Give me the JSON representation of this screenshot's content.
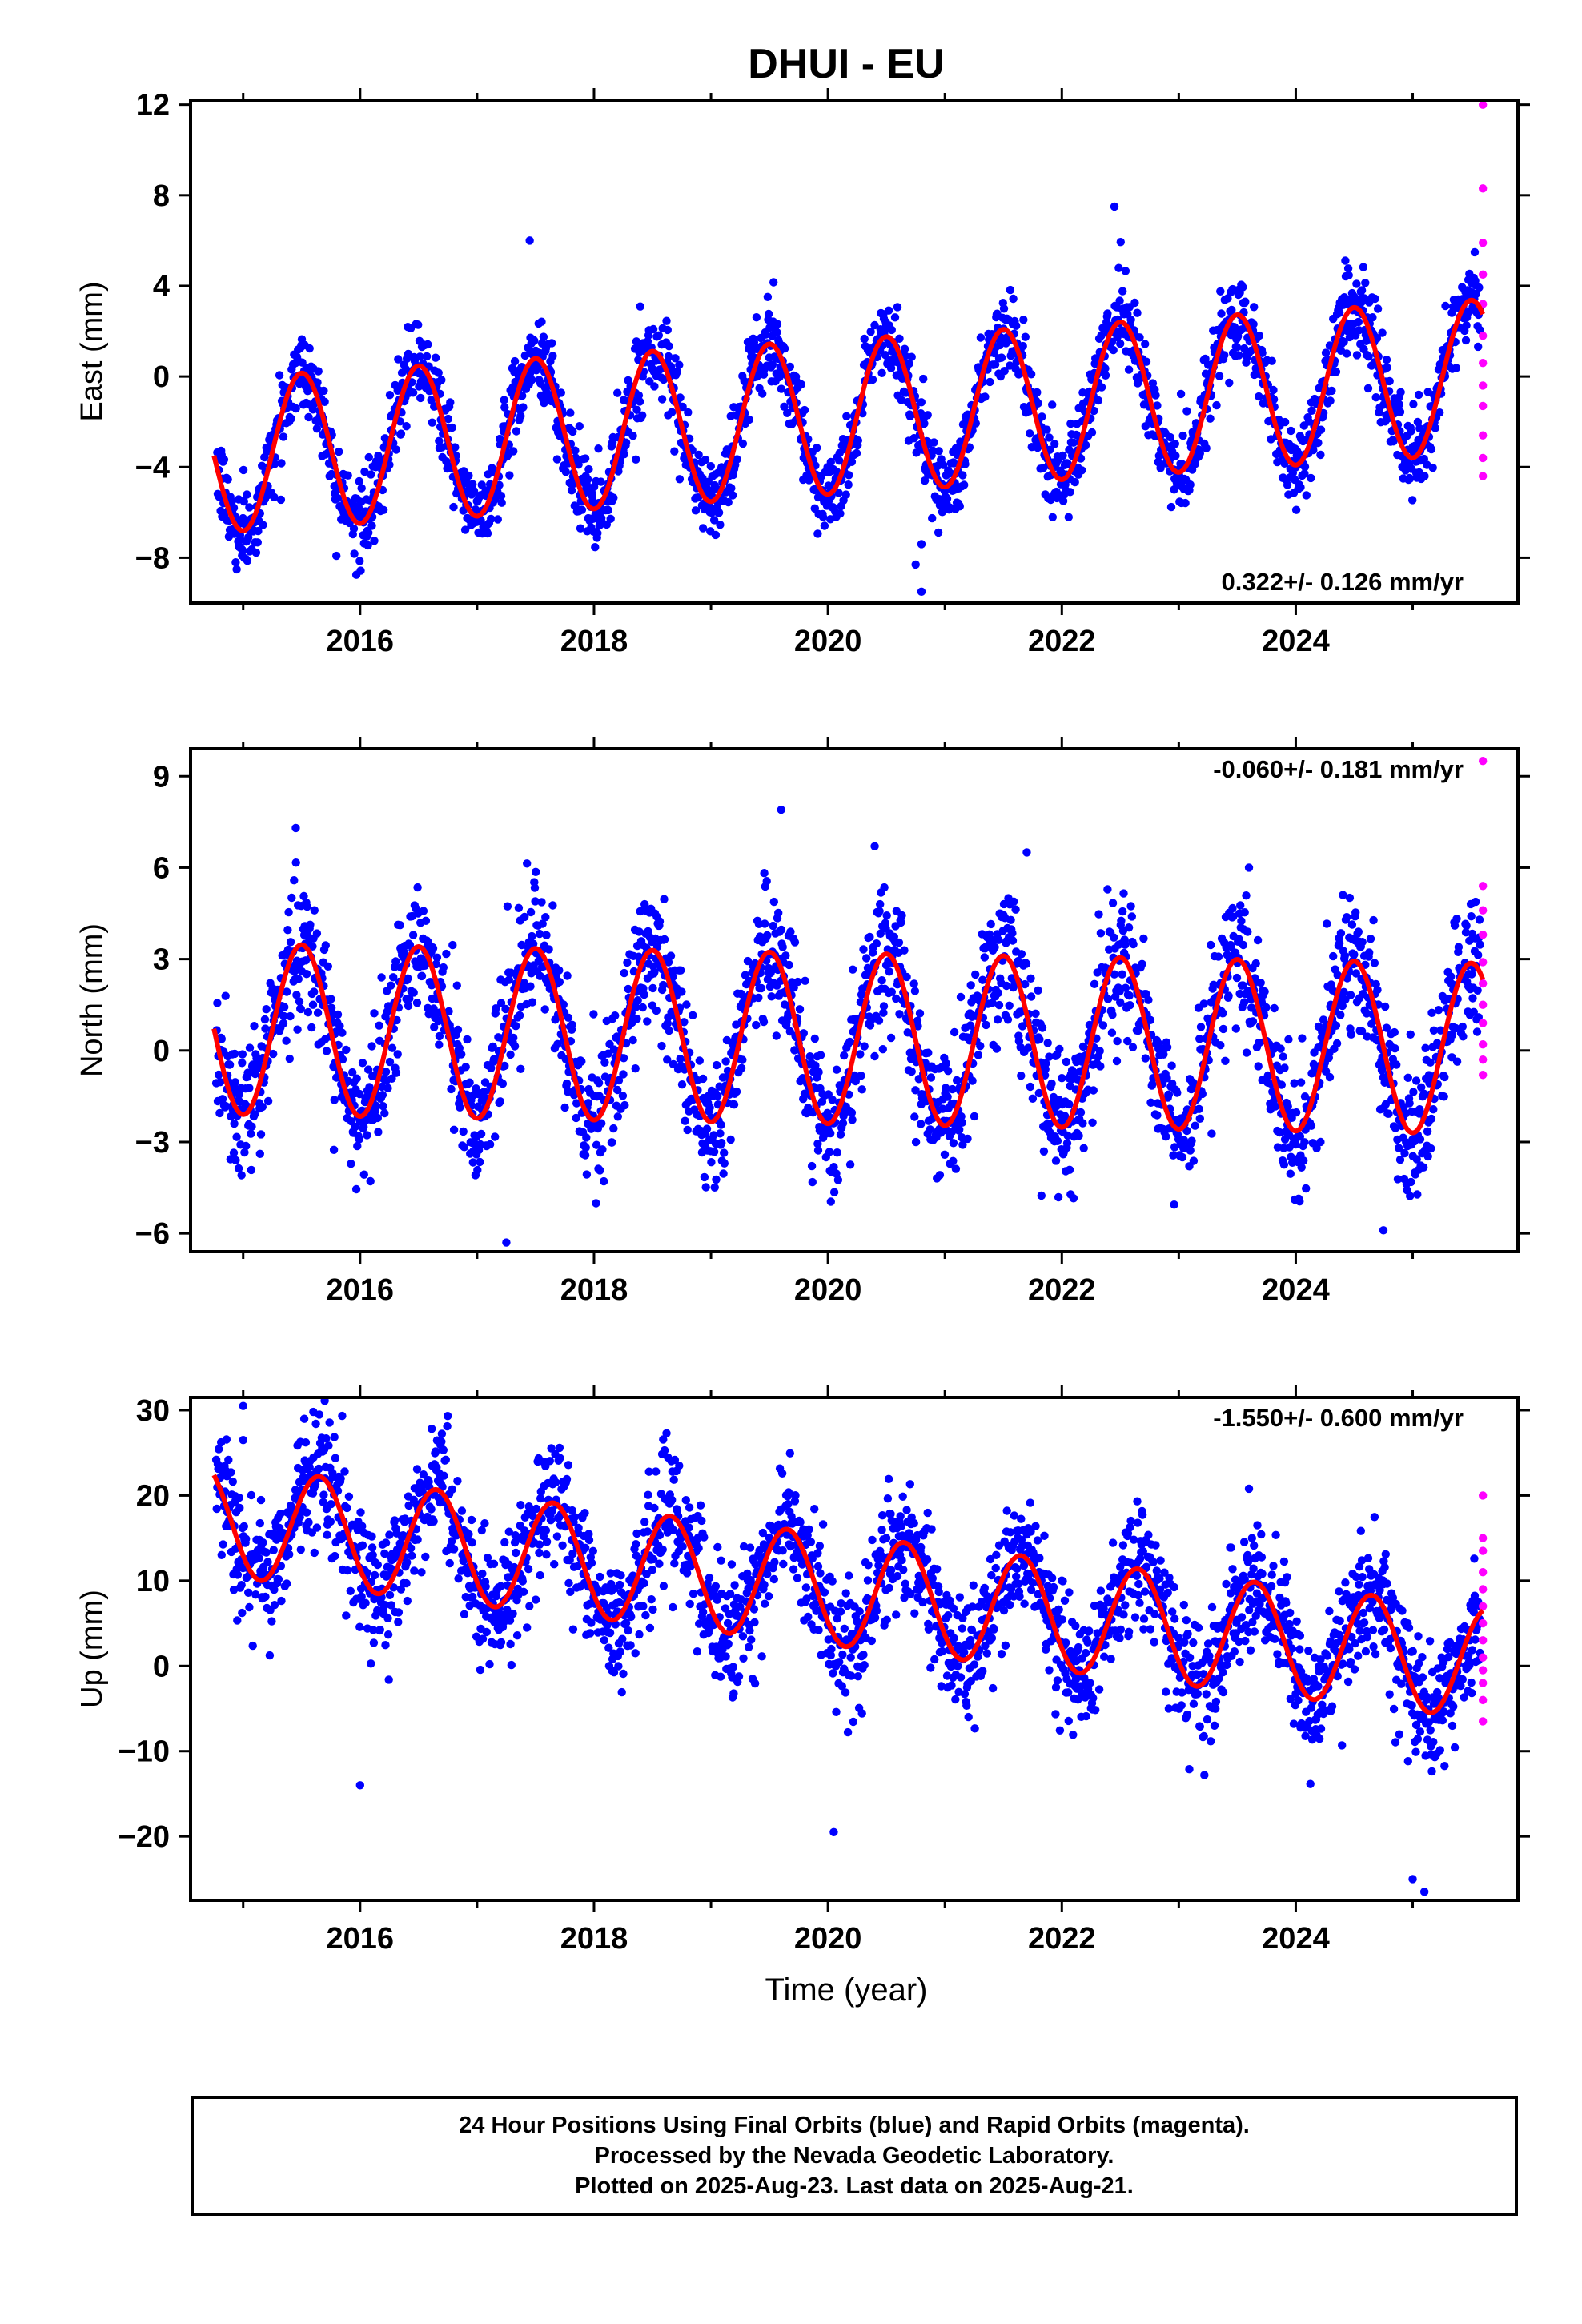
{
  "title": "DHUI - EU",
  "xlabel": "Time (year)",
  "footer": {
    "line1": "24 Hour Positions Using Final Orbits (blue) and Rapid Orbits (magenta).",
    "line2": "Processed by the Nevada Geodetic Laboratory.",
    "line3": "Plotted on 2025-Aug-23. Last data on 2025-Aug-21."
  },
  "colors": {
    "final": "#0000ff",
    "rapid": "#ff00ff",
    "model": "#ff0000",
    "frame": "#000000"
  },
  "chart_data": [
    {
      "type": "scatter",
      "ylabel": "East (mm)",
      "rate_text": "0.322+/- 0.126 mm/yr",
      "xlim": [
        2014.55,
        2025.9
      ],
      "ylim": [
        -10,
        12.2
      ],
      "x_ticks": [
        2016,
        2018,
        2020,
        2022,
        2024
      ],
      "y_ticks": [
        -8,
        -4,
        0,
        4,
        8,
        12
      ],
      "fit": {
        "start": 2014.75,
        "end": 2025.6,
        "offset": -1.8,
        "rate": 0.322,
        "amplitude": 3.4,
        "peak_phase": 0.5
      },
      "scatter_sigma": 0.9,
      "rapid_points": [
        [
          2025.6,
          12.0
        ],
        [
          2025.6,
          8.3
        ],
        [
          2025.6,
          5.9
        ],
        [
          2025.6,
          4.5
        ],
        [
          2025.6,
          3.2
        ],
        [
          2025.6,
          1.8
        ],
        [
          2025.6,
          0.6
        ],
        [
          2025.6,
          -0.4
        ],
        [
          2025.6,
          -1.3
        ],
        [
          2025.6,
          -2.6
        ],
        [
          2025.6,
          -3.6
        ],
        [
          2025.6,
          -4.4
        ]
      ],
      "outliers": [
        [
          2020.8,
          -9.5
        ],
        [
          2020.75,
          -8.3
        ],
        [
          2020.8,
          -7.4
        ],
        [
          2017.45,
          6.0
        ],
        [
          2022.45,
          7.5
        ]
      ]
    },
    {
      "type": "scatter",
      "ylabel": "North (mm)",
      "rate_text": "-0.060+/- 0.181 mm/yr",
      "xlim": [
        2014.55,
        2025.9
      ],
      "ylim": [
        -6.6,
        9.9
      ],
      "x_ticks": [
        2016,
        2018,
        2020,
        2022,
        2024
      ],
      "y_ticks": [
        -6,
        -3,
        0,
        3,
        6,
        9
      ],
      "fit": {
        "start": 2014.75,
        "end": 2025.6,
        "offset": 0.4,
        "rate": -0.06,
        "amplitude": 2.8,
        "peak_phase": 0.5
      },
      "scatter_sigma": 1.1,
      "rapid_points": [
        [
          2025.6,
          9.5
        ],
        [
          2025.6,
          5.4
        ],
        [
          2025.6,
          4.6
        ],
        [
          2025.6,
          3.8
        ],
        [
          2025.6,
          2.9
        ],
        [
          2025.6,
          2.2
        ],
        [
          2025.6,
          1.5
        ],
        [
          2025.6,
          0.9
        ],
        [
          2025.6,
          0.2
        ],
        [
          2025.6,
          -0.3
        ],
        [
          2025.6,
          -0.8
        ]
      ],
      "outliers": [
        [
          2015.45,
          7.3
        ],
        [
          2017.25,
          -6.3
        ],
        [
          2019.6,
          7.9
        ],
        [
          2021.7,
          6.5
        ],
        [
          2023.6,
          6.0
        ],
        [
          2024.75,
          -5.9
        ],
        [
          2020.4,
          6.7
        ]
      ]
    },
    {
      "type": "scatter",
      "ylabel": "Up (mm)",
      "rate_text": "-1.550+/- 0.600 mm/yr",
      "xlim": [
        2014.55,
        2025.9
      ],
      "ylim": [
        -27.5,
        31.5
      ],
      "x_ticks": [
        2016,
        2018,
        2020,
        2022,
        2024
      ],
      "y_ticks": [
        -20,
        -10,
        0,
        10,
        20,
        30
      ],
      "fit": {
        "start": 2014.75,
        "end": 2025.6,
        "offset": 9.0,
        "rate": -1.55,
        "amplitude": 6.5,
        "peak_phase": 0.65
      },
      "scatter_sigma": 3.6,
      "rapid_points": [
        [
          2025.6,
          20.0
        ],
        [
          2025.6,
          15.0
        ],
        [
          2025.6,
          13.5
        ],
        [
          2025.6,
          11.0
        ],
        [
          2025.6,
          9.0
        ],
        [
          2025.6,
          7.0
        ],
        [
          2025.6,
          5.0
        ],
        [
          2025.6,
          3.0
        ],
        [
          2025.6,
          1.0
        ],
        [
          2025.6,
          -0.5
        ],
        [
          2025.6,
          -2.0
        ],
        [
          2025.6,
          -4.0
        ],
        [
          2025.6,
          -6.5
        ]
      ],
      "outliers": [
        [
          2015.0,
          30.5
        ],
        [
          2015.0,
          26.5
        ],
        [
          2015.6,
          29.8
        ],
        [
          2016.0,
          -14.0
        ],
        [
          2020.05,
          -19.5
        ],
        [
          2023.6,
          20.8
        ],
        [
          2025.1,
          -26.5
        ],
        [
          2025.0,
          -25.0
        ]
      ]
    }
  ]
}
